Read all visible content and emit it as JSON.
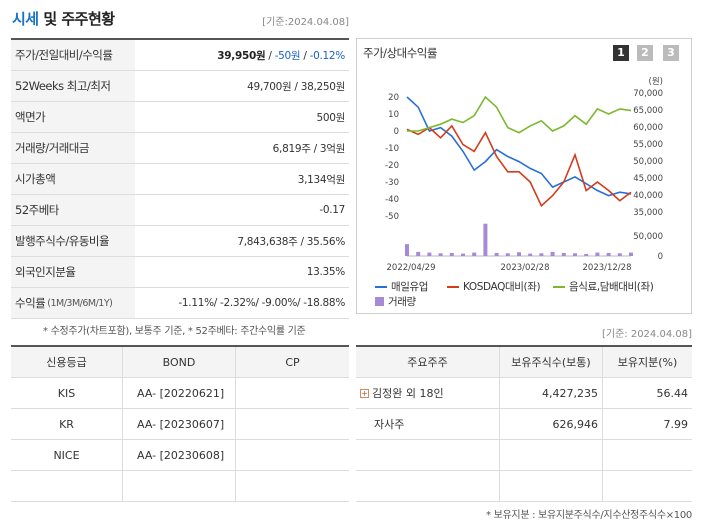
{
  "header": {
    "title_a": "시세",
    "title_b": " 및 주주현황",
    "date": "[기준:2024.04.08]"
  },
  "quote": {
    "rows": [
      {
        "label": "주가/전일대비/수익률",
        "value_main": "39,950원",
        "value_sep": " / ",
        "value_change": "-50원",
        "value_sep2": " / ",
        "value_pct": "-0.12%"
      },
      {
        "label": "52Weeks 최고/최저",
        "value": "49,700원 / 38,250원"
      },
      {
        "label": "액면가",
        "value": "500원"
      },
      {
        "label": "거래량/거래대금",
        "value": "6,819주 / 3억원"
      },
      {
        "label": "시가총액",
        "value": "3,134억원"
      },
      {
        "label": "52주베타",
        "value": "-0.17"
      },
      {
        "label": "발행주식수/유동비율",
        "value": "7,843,638주 / 35.56%"
      },
      {
        "label": "외국인지분율",
        "value": "13.35%"
      },
      {
        "label": "수익률",
        "label_small": "(1M/3M/6M/1Y)",
        "value": "-1.11%/ -2.32%/ -9.00%/ -18.88%"
      }
    ],
    "note": "* 수정주가(차트포함), 보통주 기준, * 52주베타: 주간수익률 기준"
  },
  "chart_panel": {
    "title": "주가/상대수익률",
    "period_buttons": [
      "1",
      "2",
      "3"
    ],
    "date": "[기준: 2024.04.08]"
  },
  "chart_data": {
    "type": "line",
    "left_axis": {
      "ticks": [
        "20",
        "10",
        "0",
        "-10",
        "-20",
        "-30",
        "-40",
        "-50"
      ],
      "range": [
        -50,
        20
      ]
    },
    "right_axis": {
      "unit": "(원)",
      "ticks": [
        "70,000",
        "65,000",
        "60,000",
        "55,000",
        "50,000",
        "45,000",
        "40,000",
        "35,000"
      ],
      "range": [
        35000,
        70000
      ]
    },
    "volume_axis": {
      "ticks": [
        "50,000",
        "0"
      ],
      "range": [
        0,
        100000
      ]
    },
    "x_labels": [
      "2022/04/29",
      "2023/02/28",
      "2023/12/28"
    ],
    "series": [
      {
        "name": "매일유업",
        "color": "#2a6fd6",
        "values": [
          20,
          14,
          0,
          2,
          -3,
          -12,
          -23,
          -18,
          -11,
          -15,
          -18,
          -22,
          -25,
          -33,
          -30,
          -27,
          -31,
          -35,
          -38,
          -36,
          -37
        ]
      },
      {
        "name": "KOSDAQ대비(좌)",
        "color": "#d23c1a",
        "values": [
          1,
          -2,
          2,
          -4,
          3,
          -8,
          -12,
          -1,
          -15,
          -24,
          -24,
          -30,
          -44,
          -38,
          -30,
          -14,
          -35,
          -30,
          -35,
          -41,
          -36
        ]
      },
      {
        "name": "음식료,담배대비(좌)",
        "color": "#7ab82e",
        "values": [
          0,
          0,
          2,
          4,
          7,
          5,
          9,
          20,
          14,
          2,
          -1,
          3,
          6,
          0,
          3,
          9,
          4,
          13,
          10,
          13,
          12
        ]
      },
      {
        "name": "거래량",
        "color": "#a78ad6",
        "values": [
          35000,
          12000,
          10000,
          8000,
          9000,
          7000,
          10000,
          95000,
          9000,
          8000,
          11000,
          7000,
          8000,
          12000,
          9000,
          8000,
          6000,
          10000,
          9000,
          8000,
          10000
        ]
      }
    ]
  },
  "credit": {
    "headers": [
      "신용등급",
      "BOND",
      "CP"
    ],
    "rows": [
      {
        "agency": "KIS",
        "bond": "AA-  [20220621]",
        "cp": ""
      },
      {
        "agency": "KR",
        "bond": "AA-  [20230607]",
        "cp": ""
      },
      {
        "agency": "NICE",
        "bond": "AA-  [20230608]",
        "cp": ""
      }
    ]
  },
  "shareholders": {
    "headers": [
      "주요주주",
      "보유주식수(보통)",
      "보유지분(%)"
    ],
    "rows": [
      {
        "name": "김정완 외 18인",
        "shares": "4,427,235",
        "pct": "56.44"
      },
      {
        "name": "자사주",
        "shares": "626,946",
        "pct": "7.99"
      }
    ],
    "note": "* 보유지분 : 보유지분주식수/지수산정주식수×100"
  },
  "colors": {
    "accent": "#1a73c7",
    "negative": "#1a5fcc",
    "active_button": "#333333",
    "inactive_button": "#bbbbbb"
  }
}
